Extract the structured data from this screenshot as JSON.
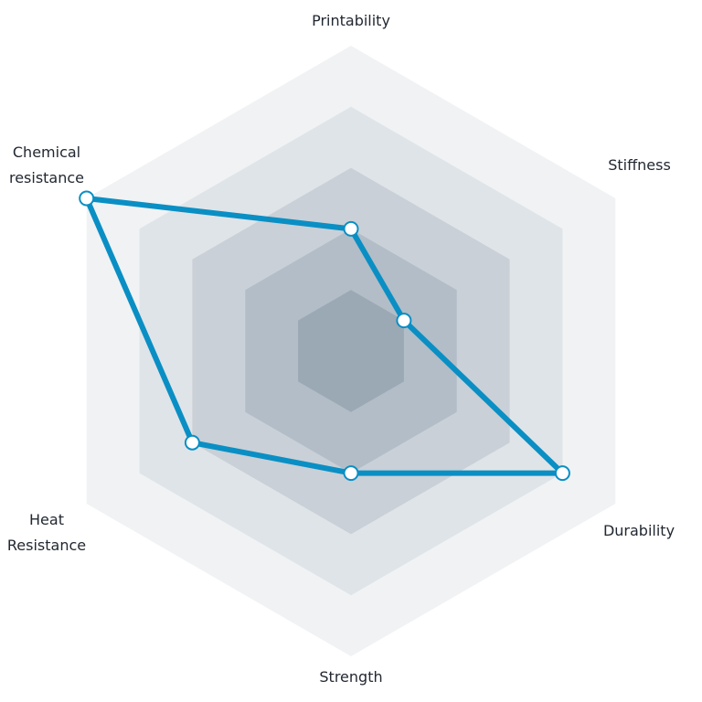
{
  "chart_data": {
    "type": "radar",
    "axes": [
      "Printability",
      "Stiffness",
      "Durability",
      "Strength",
      "Heat\nResistance",
      "Chemical\nresistance"
    ],
    "max": 5,
    "levels": 5,
    "series": [
      {
        "values": [
          2,
          1,
          4,
          2,
          3,
          5
        ]
      }
    ],
    "colors": {
      "line": "#0a8fc4",
      "marker_fill": "#ffffff",
      "rings": [
        "#f0f2f4",
        "#dfe4e8",
        "#c9d0d7",
        "#b2bdc7",
        "#9ba9b5"
      ],
      "label": "#222831"
    }
  }
}
